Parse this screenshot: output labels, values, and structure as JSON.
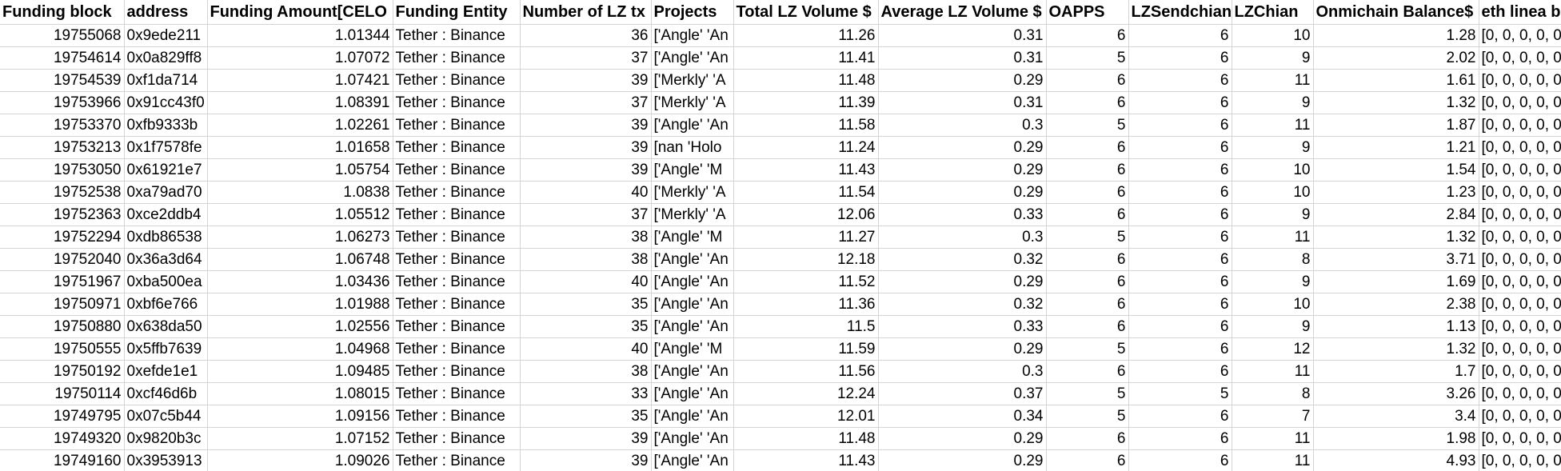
{
  "headers": [
    "Funding block",
    "address",
    "Funding Amount[CELO",
    "Funding Entity",
    "Number of LZ tx",
    "Projects",
    "Total LZ Volume $",
    "Average LZ Volume $",
    "OAPPS",
    "LZSendchian",
    "LZChian",
    "Onmichain Balance$",
    "eth linea b"
  ],
  "rows": [
    [
      "19755068",
      "0x9ede211",
      "1.01344",
      "Tether : Binance",
      "36",
      "['Angle' 'An",
      "11.26",
      "0.31",
      "6",
      "6",
      "10",
      "1.28",
      "[0, 0, 0, 0, 0"
    ],
    [
      "19754614",
      "0x0a829ff8",
      "1.07072",
      "Tether : Binance",
      "37",
      "['Angle' 'An",
      "11.41",
      "0.31",
      "5",
      "6",
      "9",
      "2.02",
      "[0, 0, 0, 0, 0"
    ],
    [
      "19754539",
      "0xf1da714",
      "1.07421",
      "Tether : Binance",
      "39",
      "['Merkly' 'A",
      "11.48",
      "0.29",
      "6",
      "6",
      "11",
      "1.61",
      "[0, 0, 0, 0, 0"
    ],
    [
      "19753966",
      "0x91cc43f0",
      "1.08391",
      "Tether : Binance",
      "37",
      "['Merkly' 'A",
      "11.39",
      "0.31",
      "6",
      "6",
      "9",
      "1.32",
      "[0, 0, 0, 0, 0"
    ],
    [
      "19753370",
      "0xfb9333b",
      "1.02261",
      "Tether : Binance",
      "39",
      "['Angle' 'An",
      "11.58",
      "0.3",
      "5",
      "6",
      "11",
      "1.87",
      "[0, 0, 0, 0, 0"
    ],
    [
      "19753213",
      "0x1f7578fe",
      "1.01658",
      "Tether : Binance",
      "39",
      "[nan 'Holo",
      "11.24",
      "0.29",
      "6",
      "6",
      "9",
      "1.21",
      "[0, 0, 0, 0, 0"
    ],
    [
      "19753050",
      "0x61921e7",
      "1.05754",
      "Tether : Binance",
      "39",
      "['Angle' 'M",
      "11.43",
      "0.29",
      "6",
      "6",
      "10",
      "1.54",
      "[0, 0, 0, 0, 0"
    ],
    [
      "19752538",
      "0xa79ad70",
      "1.0838",
      "Tether : Binance",
      "40",
      "['Merkly' 'A",
      "11.54",
      "0.29",
      "6",
      "6",
      "10",
      "1.23",
      "[0, 0, 0, 0, 0"
    ],
    [
      "19752363",
      "0xce2ddb4",
      "1.05512",
      "Tether : Binance",
      "37",
      "['Merkly' 'A",
      "12.06",
      "0.33",
      "6",
      "6",
      "9",
      "2.84",
      "[0, 0, 0, 0, 0"
    ],
    [
      "19752294",
      "0xdb86538",
      "1.06273",
      "Tether : Binance",
      "38",
      "['Angle' 'M",
      "11.27",
      "0.3",
      "5",
      "6",
      "11",
      "1.32",
      "[0, 0, 0, 0, 0"
    ],
    [
      "19752040",
      "0x36a3d64",
      "1.06748",
      "Tether : Binance",
      "38",
      "['Angle' 'An",
      "12.18",
      "0.32",
      "6",
      "6",
      "8",
      "3.71",
      "[0, 0, 0, 0, 0"
    ],
    [
      "19751967",
      "0xba500ea",
      "1.03436",
      "Tether : Binance",
      "40",
      "['Angle' 'An",
      "11.52",
      "0.29",
      "6",
      "6",
      "9",
      "1.69",
      "[0, 0, 0, 0, 0"
    ],
    [
      "19750971",
      "0xbf6e766",
      "1.01988",
      "Tether : Binance",
      "35",
      "['Angle' 'An",
      "11.36",
      "0.32",
      "6",
      "6",
      "10",
      "2.38",
      "[0, 0, 0, 0, 0"
    ],
    [
      "19750880",
      "0x638da50",
      "1.02556",
      "Tether : Binance",
      "35",
      "['Angle' 'An",
      "11.5",
      "0.33",
      "6",
      "6",
      "9",
      "1.13",
      "[0, 0, 0, 0, 0"
    ],
    [
      "19750555",
      "0x5ffb7639",
      "1.04968",
      "Tether : Binance",
      "40",
      "['Angle' 'M",
      "11.59",
      "0.29",
      "5",
      "6",
      "12",
      "1.32",
      "[0, 0, 0, 0, 0"
    ],
    [
      "19750192",
      "0xefde1e1",
      "1.09485",
      "Tether : Binance",
      "38",
      "['Angle' 'An",
      "11.56",
      "0.3",
      "6",
      "6",
      "11",
      "1.7",
      "[0, 0, 0, 0, 0"
    ],
    [
      "19750114",
      "0xcf46d6b",
      "1.08015",
      "Tether : Binance",
      "33",
      "['Angle' 'An",
      "12.24",
      "0.37",
      "5",
      "5",
      "8",
      "3.26",
      "[0, 0, 0, 0, 0"
    ],
    [
      "19749795",
      "0x07c5b44",
      "1.09156",
      "Tether : Binance",
      "35",
      "['Angle' 'An",
      "12.01",
      "0.34",
      "5",
      "6",
      "7",
      "3.4",
      "[0, 0, 0, 0, 0"
    ],
    [
      "19749320",
      "0x9820b3c",
      "1.07152",
      "Tether : Binance",
      "39",
      "['Angle' 'An",
      "11.48",
      "0.29",
      "6",
      "6",
      "11",
      "1.98",
      "[0, 0, 0, 0, 0"
    ],
    [
      "19749160",
      "0x3953913",
      "1.09026",
      "Tether : Binance",
      "39",
      "['Angle' 'An",
      "11.43",
      "0.29",
      "6",
      "6",
      "11",
      "4.93",
      "[0, 0, 0, 0, 0"
    ]
  ]
}
